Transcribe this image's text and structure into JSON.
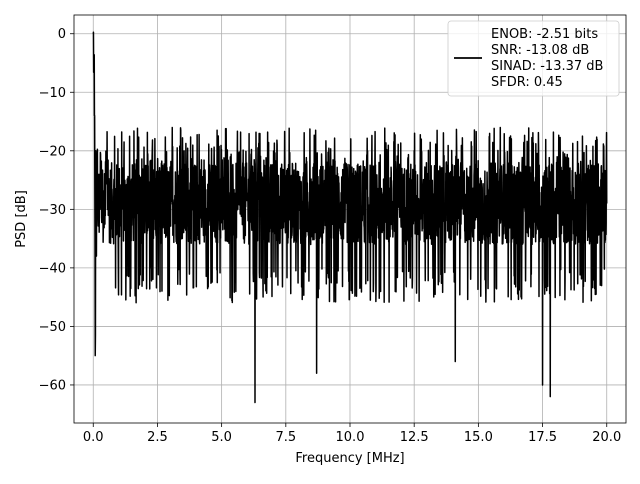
{
  "chart_data": {
    "type": "line",
    "title": "",
    "xlabel": "Frequency [MHz]",
    "ylabel": "PSD [dB]",
    "xlim": [
      -0.75,
      20.75
    ],
    "ylim": [
      -66.5,
      3.2
    ],
    "xticks": [
      0.0,
      2.5,
      5.0,
      7.5,
      10.0,
      12.5,
      15.0,
      17.5,
      20.0
    ],
    "xtick_labels": [
      "0.0",
      "2.5",
      "5.0",
      "7.5",
      "10.0",
      "12.5",
      "15.0",
      "17.5",
      "20.0"
    ],
    "yticks": [
      0,
      -10,
      -20,
      -30,
      -40,
      -50,
      -60
    ],
    "ytick_labels": [
      "0",
      "−10",
      "−20",
      "−30",
      "−40",
      "−50",
      "−60"
    ],
    "grid": true,
    "legend_position": "top-right",
    "legend_entries": [
      "ENOB: -2.51 bits",
      "SNR: -13.08 dB",
      "SINAD: -13.37 dB",
      "SFDR: 0.45"
    ],
    "series": [
      {
        "color": "#000000",
        "x": [
          0.0,
          0.02,
          0.05,
          0.08,
          0.1,
          0.12,
          0.15,
          0.2,
          0.3,
          0.4,
          0.5,
          0.7,
          1.0,
          1.5,
          2.0,
          3.0,
          4.0,
          5.0,
          6.0,
          6.3,
          7.0,
          8.0,
          8.7,
          9.0,
          10.0,
          11.0,
          12.0,
          12.5,
          13.0,
          14.0,
          14.1,
          15.0,
          16.0,
          17.0,
          17.5,
          17.8,
          18.0,
          19.0,
          20.0
        ],
        "y": [
          0,
          -5,
          -14,
          -55,
          -20,
          -38,
          -22,
          -30,
          -25,
          -33,
          -22,
          -27,
          -30,
          -28,
          -26,
          -29,
          -27,
          -30,
          -28,
          -63,
          -29,
          -27,
          -58,
          -30,
          -28,
          -29,
          -27,
          -20,
          -29,
          -28,
          -56,
          -30,
          -27,
          -29,
          -60,
          -62,
          -28,
          -27,
          -29
        ],
        "noise_band": {
          "upper": -16,
          "lower": -40,
          "typical_upper": -22,
          "typical_lower": -36
        }
      }
    ]
  }
}
